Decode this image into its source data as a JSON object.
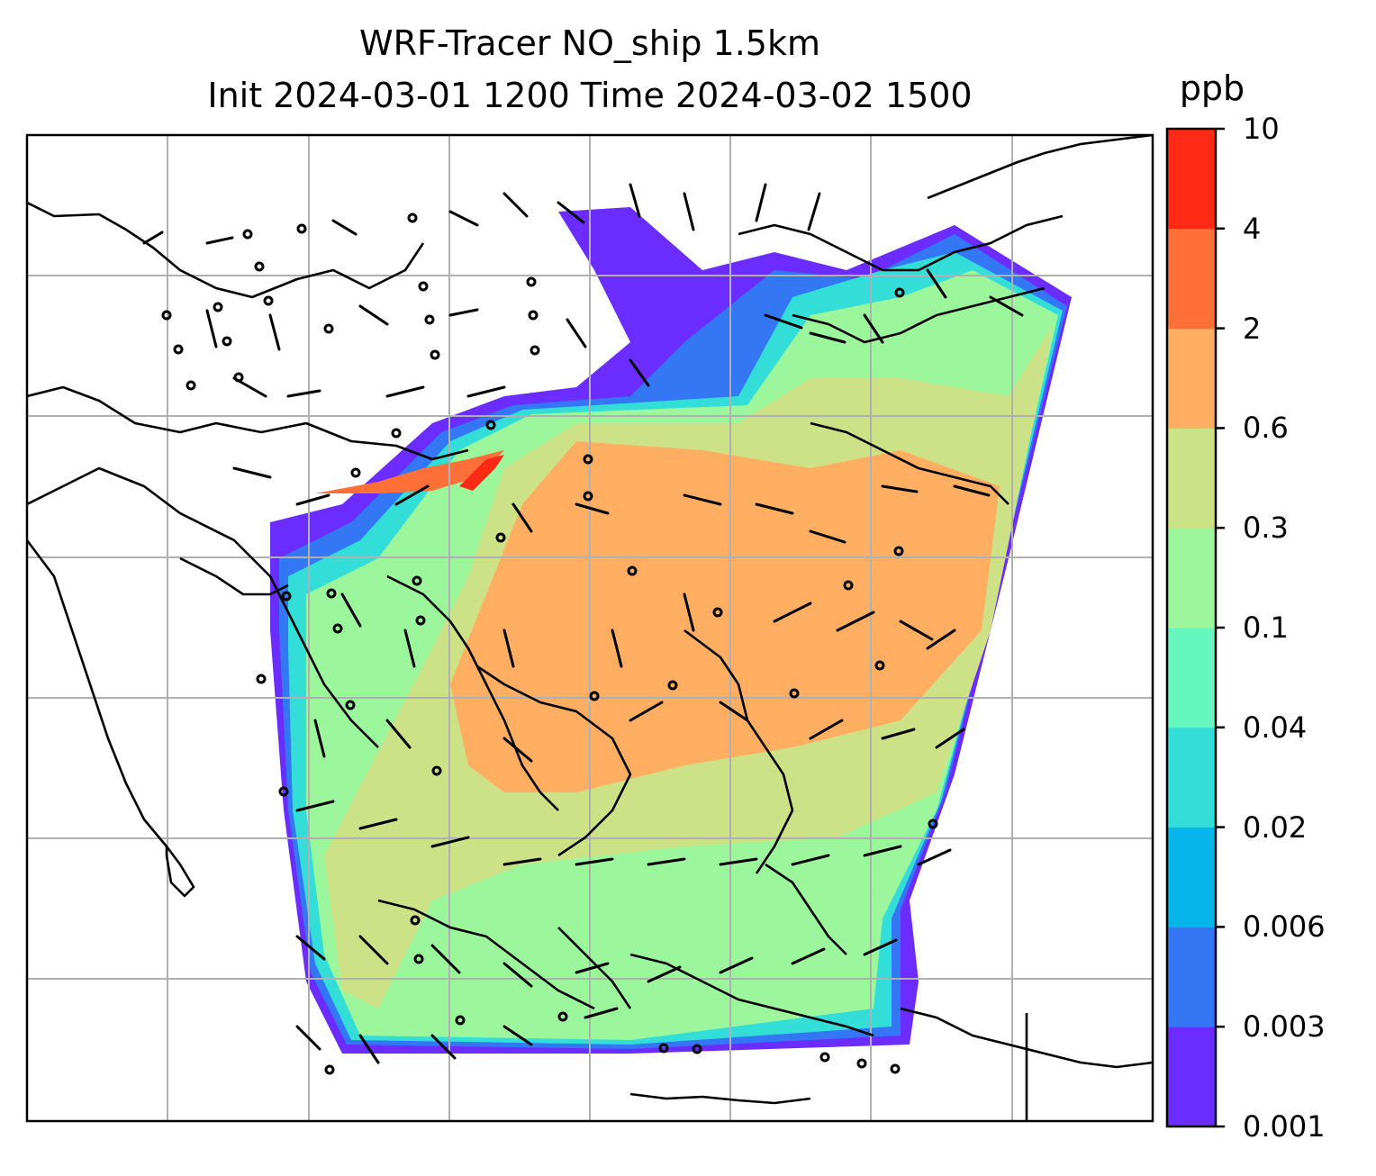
{
  "title": {
    "line1": "WRF-Tracer NO_ship 1.5km",
    "line2": "Init 2024-03-01 1200 Time 2024-03-02 1500"
  },
  "colorbar": {
    "unit": "ppb",
    "ticks": [
      "0.001",
      "0.003",
      "0.006",
      "0.02",
      "0.04",
      "0.1",
      "0.3",
      "0.6",
      "2",
      "4",
      "10"
    ],
    "colors": [
      "#6a2cff",
      "#3477f4",
      "#08b4ec",
      "#33ded8",
      "#64f8c0",
      "#9cf79c",
      "#cde286",
      "#ffae62",
      "#ff7038",
      "#ff2a16"
    ]
  },
  "map": {
    "field": "NO_ship",
    "colors": {
      "land_outline": "#000000",
      "gridline": "#b0b0b0",
      "wind_barb": "#000000"
    }
  }
}
